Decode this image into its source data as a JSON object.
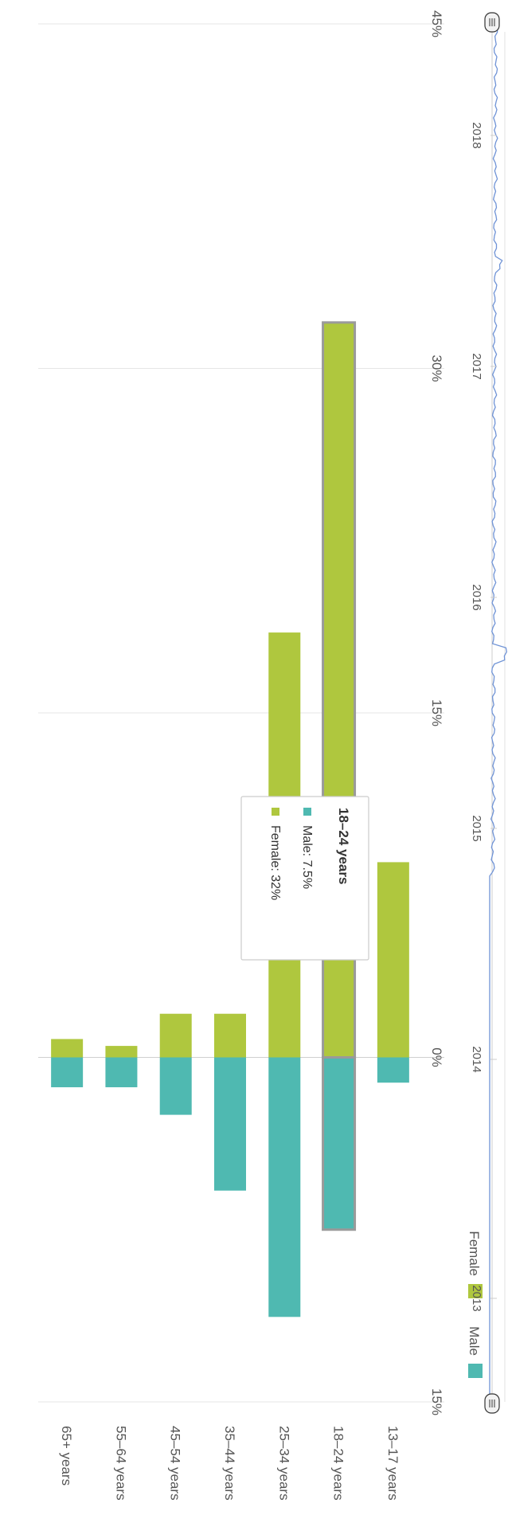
{
  "chart_data": {
    "type": "bar",
    "orientation": "horizontal-diverging",
    "categories": [
      "13–17 years",
      "18–24 years",
      "25–34 years",
      "35–44 years",
      "45–54 years",
      "55–64 years",
      "65+ years"
    ],
    "series": [
      {
        "name": "Male",
        "color": "#4fb9b1",
        "values": [
          -1.1,
          -7.5,
          -11.3,
          -5.8,
          -2.5,
          -1.3,
          -1.3
        ]
      },
      {
        "name": "Female",
        "color": "#afc73e",
        "values": [
          8.5,
          32,
          18.5,
          1.9,
          1.9,
          0.5,
          0.8
        ]
      }
    ],
    "xlim": [
      -15,
      45
    ],
    "ticks": [
      {
        "value": -15,
        "label": "15%"
      },
      {
        "value": 0,
        "label": "0%"
      },
      {
        "value": 15,
        "label": "15%"
      },
      {
        "value": 30,
        "label": "30%"
      },
      {
        "value": 45,
        "label": "45%"
      }
    ],
    "legend": {
      "placement": "top-left",
      "items": [
        "Male",
        "Female"
      ]
    },
    "tooltip": {
      "category": "18–24 years",
      "title": "18–24 years",
      "lines": [
        {
          "series": "Male",
          "text": "Male: 7.5%",
          "color": "#4fb9b1"
        },
        {
          "series": "Female",
          "text": "Female: 32%",
          "color": "#afc73e"
        }
      ]
    },
    "navigator": {
      "labels": [
        "2013",
        "2014",
        "2015",
        "2016",
        "2017",
        "2018"
      ],
      "line_color": "#6f93d6"
    }
  }
}
